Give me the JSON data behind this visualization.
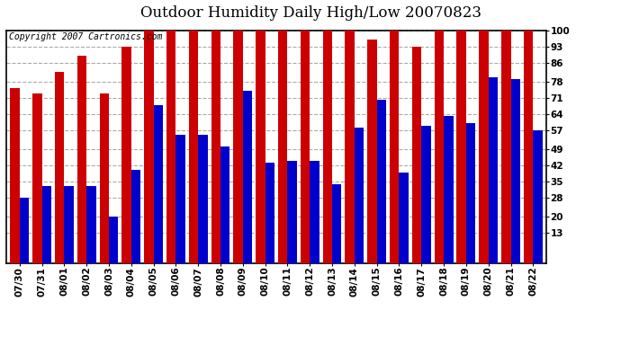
{
  "title": "Outdoor Humidity Daily High/Low 20070823",
  "copyright": "Copyright 2007 Cartronics.com",
  "dates": [
    "07/30",
    "07/31",
    "08/01",
    "08/02",
    "08/03",
    "08/04",
    "08/05",
    "08/06",
    "08/07",
    "08/08",
    "08/09",
    "08/10",
    "08/11",
    "08/12",
    "08/13",
    "08/14",
    "08/15",
    "08/16",
    "08/17",
    "08/18",
    "08/19",
    "08/20",
    "08/21",
    "08/22"
  ],
  "highs": [
    75,
    73,
    82,
    89,
    73,
    93,
    100,
    100,
    100,
    100,
    100,
    100,
    100,
    100,
    100,
    100,
    96,
    100,
    93,
    100,
    100,
    100,
    100,
    100
  ],
  "lows": [
    28,
    33,
    33,
    33,
    20,
    40,
    68,
    55,
    55,
    50,
    74,
    43,
    44,
    44,
    34,
    58,
    70,
    39,
    59,
    63,
    60,
    80,
    79,
    57
  ],
  "high_color": "#cc0000",
  "low_color": "#0000cc",
  "bg_color": "#ffffff",
  "grid_color": "#aaaaaa",
  "yticks": [
    13,
    20,
    28,
    35,
    42,
    49,
    57,
    64,
    71,
    78,
    86,
    93,
    100
  ],
  "ymin": 0,
  "ymax": 100,
  "bar_width": 0.42,
  "title_fontsize": 12,
  "axis_fontsize": 7.5,
  "copyright_fontsize": 7
}
